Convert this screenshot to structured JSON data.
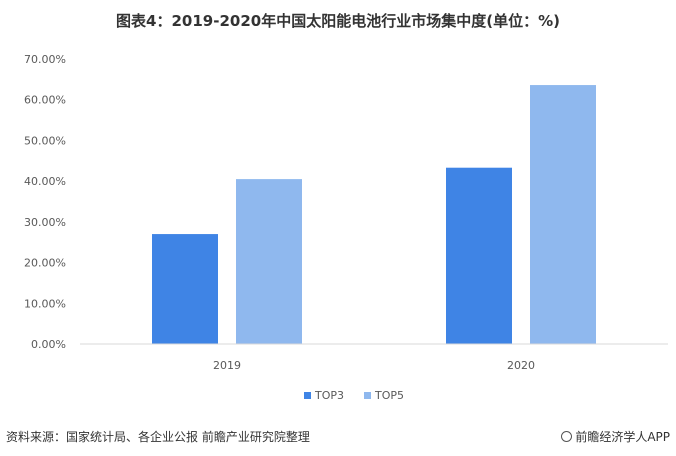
{
  "header": {
    "title": "图表4：2019-2020年中国太阳能电池行业市场集中度(单位：%)"
  },
  "chart_data": {
    "type": "bar",
    "categories": [
      "2019",
      "2020"
    ],
    "series": [
      {
        "name": "TOP3",
        "values": [
          27.0,
          43.3
        ],
        "color": "#3f84e5"
      },
      {
        "name": "TOP5",
        "values": [
          40.5,
          63.6
        ],
        "color": "#8fb8ee"
      }
    ],
    "ylim": [
      0,
      70
    ],
    "yticks": [
      "0.00%",
      "10.00%",
      "20.00%",
      "30.00%",
      "40.00%",
      "50.00%",
      "60.00%",
      "70.00%"
    ],
    "legend": "bottom",
    "grid": false
  },
  "footer": {
    "source": "资料来源：国家统计局、各企业公报 前瞻产业研究院整理",
    "brand": "前瞻经济学人APP"
  }
}
